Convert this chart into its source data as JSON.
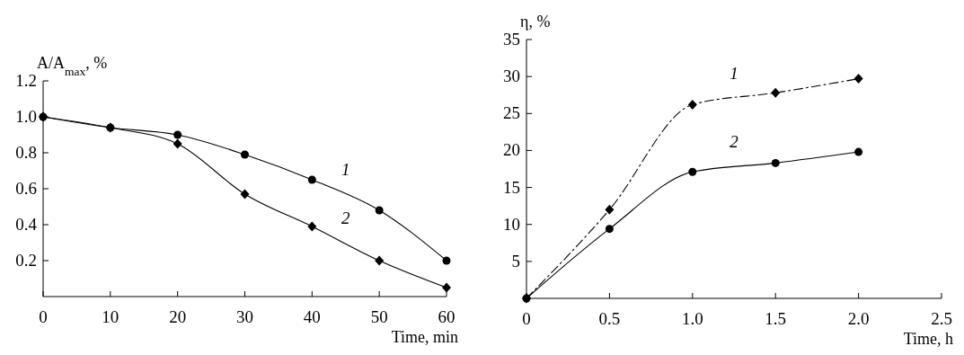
{
  "chart_data": [
    {
      "type": "line",
      "xlabel": "Time, min",
      "ylabel": "A/A$_{max}$, %",
      "xlim": [
        0,
        60
      ],
      "xticks": [
        0,
        10,
        20,
        30,
        40,
        50,
        60
      ],
      "ylim": [
        0,
        1.2
      ],
      "yticks": [
        0.2,
        0.4,
        0.6,
        0.8,
        {
          "value": 1.0,
          "label": "1.0"
        },
        1.2
      ],
      "grid": false,
      "x": [
        0,
        10,
        20,
        30,
        40,
        50,
        60
      ],
      "series": [
        {
          "name": "1",
          "color": "#000000",
          "marker": "circle",
          "line_style": "solid",
          "values": [
            1.0,
            0.94,
            0.9,
            0.79,
            0.65,
            0.48,
            0.2
          ]
        },
        {
          "name": "2",
          "color": "#000000",
          "marker": "diamond",
          "line_style": "solid",
          "values": [
            1.0,
            0.94,
            0.85,
            0.57,
            0.39,
            0.2,
            0.05
          ]
        }
      ]
    },
    {
      "type": "line",
      "xlabel": "Time, h",
      "ylabel": "η, %",
      "xlim": [
        0,
        2.5
      ],
      "xticks": [
        0,
        0.5,
        {
          "value": 1.0,
          "label": "1.0"
        },
        1.5,
        {
          "value": 2.0,
          "label": "2.0"
        },
        2.5
      ],
      "ylim": [
        0,
        35
      ],
      "yticks": [
        5,
        10,
        15,
        20,
        25,
        30,
        35
      ],
      "grid": false,
      "x": [
        0,
        0.5,
        1.0,
        1.5,
        2.0
      ],
      "series": [
        {
          "name": "1",
          "color": "#000000",
          "marker": "diamond",
          "line_style": "dashed",
          "values": [
            0,
            12.0,
            26.2,
            27.8,
            29.7
          ]
        },
        {
          "name": "2",
          "color": "#000000",
          "marker": "circle",
          "line_style": "solid",
          "values": [
            0,
            9.4,
            17.1,
            18.3,
            19.8
          ]
        }
      ]
    }
  ]
}
